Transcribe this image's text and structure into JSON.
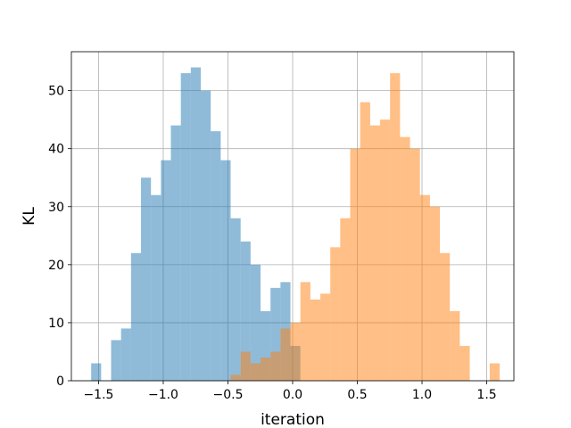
{
  "chart_data": {
    "type": "bar",
    "subtype": "overlapping-histogram",
    "xlabel": "iteration",
    "ylabel": "KL",
    "title": "",
    "xlim": [
      -1.71,
      1.71
    ],
    "ylim": [
      0,
      56.7
    ],
    "xticks": [
      -1.5,
      -1.0,
      -0.5,
      0.0,
      0.5,
      1.0,
      1.5
    ],
    "xtick_labels": [
      "−1.5",
      "−1.0",
      "−0.5",
      "0.0",
      "0.5",
      "1.0",
      "1.5"
    ],
    "yticks": [
      0,
      10,
      20,
      30,
      40,
      50
    ],
    "ytick_labels": [
      "0",
      "10",
      "20",
      "30",
      "40",
      "50"
    ],
    "grid": true,
    "legend": "none",
    "alpha": 0.5,
    "bin_edges": [
      -1.557,
      -1.48,
      -1.403,
      -1.326,
      -1.249,
      -1.172,
      -1.095,
      -1.018,
      -0.941,
      -0.864,
      -0.787,
      -0.71,
      -0.633,
      -0.556,
      -0.479,
      -0.402,
      -0.325,
      -0.248,
      -0.171,
      -0.094,
      -0.017,
      0.06,
      0.137,
      0.214,
      0.291,
      0.368,
      0.445,
      0.522,
      0.599,
      0.676,
      0.753,
      0.83,
      0.907,
      0.984,
      1.061,
      1.138,
      1.215,
      1.292,
      1.369,
      1.446,
      1.523,
      1.6
    ],
    "series": [
      {
        "color": "#1f77b4",
        "counts": [
          3,
          0,
          7,
          9,
          22,
          35,
          32,
          38,
          44,
          53,
          54,
          50,
          43,
          38,
          28,
          24,
          20,
          12,
          16,
          17,
          6,
          0,
          0,
          0,
          0,
          0,
          0,
          0,
          0,
          0,
          0,
          0,
          0,
          0,
          0,
          0,
          0,
          0,
          0,
          0,
          0
        ]
      },
      {
        "color": "#ff7f0e",
        "counts": [
          0,
          0,
          0,
          0,
          0,
          0,
          0,
          0,
          0,
          0,
          0,
          0,
          0,
          0,
          1,
          5,
          3,
          4,
          5,
          9,
          10,
          17,
          14,
          15,
          23,
          28,
          40,
          48,
          44,
          45,
          53,
          42,
          40,
          32,
          30,
          22,
          12,
          6,
          0,
          0,
          3
        ]
      }
    ]
  }
}
